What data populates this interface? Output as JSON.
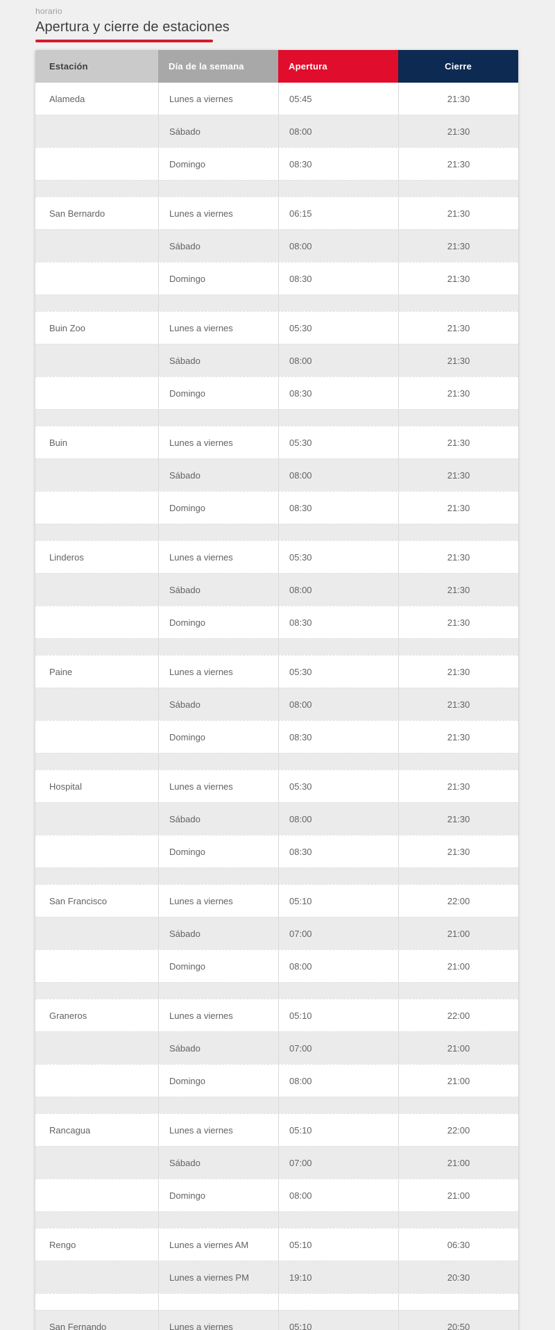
{
  "page": {
    "eyebrow": "horario",
    "title": "Apertura y cierre de estaciones"
  },
  "colors": {
    "accent_red": "#e00d2c",
    "underline_red": "#d8182c",
    "header_navy": "#0d2a52",
    "header_gray_light": "#cacaca",
    "header_gray_mid": "#a8a8a8",
    "row_white": "#ffffff",
    "row_gray": "#ebebeb",
    "page_bg": "#f0f0f0"
  },
  "table": {
    "headers": [
      {
        "label": "Estación"
      },
      {
        "label": "Día de la semana"
      },
      {
        "label": "Apertura"
      },
      {
        "label": "Cierre"
      }
    ],
    "stations": [
      {
        "name": "Alameda",
        "rows": [
          {
            "day": "Lunes a viernes",
            "open": "05:45",
            "close": "21:30"
          },
          {
            "day": "Sábado",
            "open": "08:00",
            "close": "21:30"
          },
          {
            "day": "Domingo",
            "open": "08:30",
            "close": "21:30"
          }
        ]
      },
      {
        "name": "San Bernardo",
        "rows": [
          {
            "day": "Lunes a viernes",
            "open": "06:15",
            "close": "21:30"
          },
          {
            "day": "Sábado",
            "open": "08:00",
            "close": "21:30"
          },
          {
            "day": "Domingo",
            "open": "08:30",
            "close": "21:30"
          }
        ]
      },
      {
        "name": "Buin Zoo",
        "rows": [
          {
            "day": "Lunes a viernes",
            "open": "05:30",
            "close": "21:30"
          },
          {
            "day": "Sábado",
            "open": "08:00",
            "close": "21:30"
          },
          {
            "day": "Domingo",
            "open": "08:30",
            "close": "21:30"
          }
        ]
      },
      {
        "name": "Buin",
        "rows": [
          {
            "day": "Lunes a viernes",
            "open": "05:30",
            "close": "21:30"
          },
          {
            "day": "Sábado",
            "open": "08:00",
            "close": "21:30"
          },
          {
            "day": "Domingo",
            "open": "08:30",
            "close": "21:30"
          }
        ]
      },
      {
        "name": "Linderos",
        "rows": [
          {
            "day": "Lunes a viernes",
            "open": "05:30",
            "close": "21:30"
          },
          {
            "day": "Sábado",
            "open": "08:00",
            "close": "21:30"
          },
          {
            "day": "Domingo",
            "open": "08:30",
            "close": "21:30"
          }
        ]
      },
      {
        "name": "Paine",
        "rows": [
          {
            "day": "Lunes a viernes",
            "open": "05:30",
            "close": "21:30"
          },
          {
            "day": "Sábado",
            "open": "08:00",
            "close": "21:30"
          },
          {
            "day": "Domingo",
            "open": "08:30",
            "close": "21:30"
          }
        ]
      },
      {
        "name": "Hospital",
        "rows": [
          {
            "day": "Lunes a viernes",
            "open": "05:30",
            "close": "21:30"
          },
          {
            "day": "Sábado",
            "open": "08:00",
            "close": "21:30"
          },
          {
            "day": "Domingo",
            "open": "08:30",
            "close": "21:30"
          }
        ]
      },
      {
        "name": "San Francisco",
        "rows": [
          {
            "day": "Lunes a viernes",
            "open": "05:10",
            "close": "22:00"
          },
          {
            "day": "Sábado",
            "open": "07:00",
            "close": "21:00"
          },
          {
            "day": "Domingo",
            "open": "08:00",
            "close": "21:00"
          }
        ]
      },
      {
        "name": "Graneros",
        "rows": [
          {
            "day": "Lunes a viernes",
            "open": "05:10",
            "close": "22:00"
          },
          {
            "day": "Sábado",
            "open": "07:00",
            "close": "21:00"
          },
          {
            "day": "Domingo",
            "open": "08:00",
            "close": "21:00"
          }
        ]
      },
      {
        "name": "Rancagua",
        "rows": [
          {
            "day": "Lunes a viernes",
            "open": "05:10",
            "close": "22:00"
          },
          {
            "day": "Sábado",
            "open": "07:00",
            "close": "21:00"
          },
          {
            "day": "Domingo",
            "open": "08:00",
            "close": "21:00"
          }
        ]
      },
      {
        "name": "Rengo",
        "rows": [
          {
            "day": "Lunes a viernes AM",
            "open": "05:10",
            "close": "06:30"
          },
          {
            "day": "Lunes a viernes PM",
            "open": "19:10",
            "close": "20:30"
          }
        ]
      },
      {
        "name": "San Fernando",
        "rows": [
          {
            "day": "Lunes a viernes",
            "open": "05:10",
            "close": "20:50"
          }
        ]
      }
    ]
  }
}
